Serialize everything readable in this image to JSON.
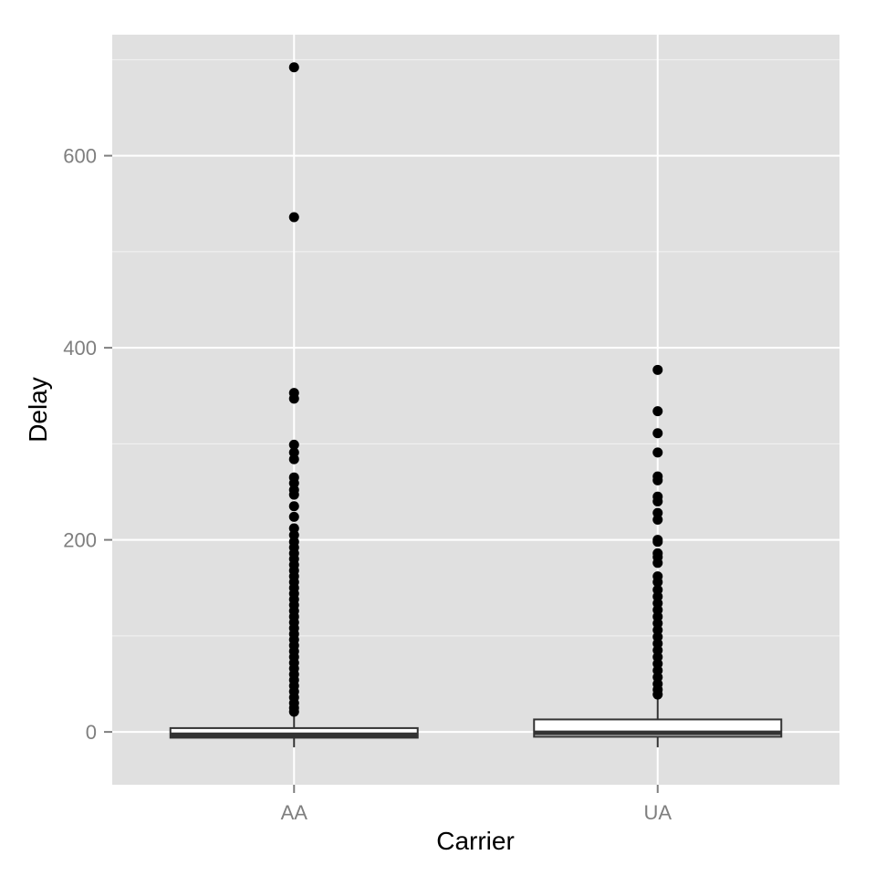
{
  "chart_data": {
    "type": "boxplot",
    "title": "",
    "xlabel": "Carrier",
    "ylabel": "Delay",
    "ylim": [
      -55,
      726
    ],
    "y_ticks": [
      0,
      200,
      400,
      600
    ],
    "y_tick_labels": [
      "0",
      "200",
      "400",
      "600"
    ],
    "grid": true,
    "legend": "none",
    "categories": [
      "AA",
      "UA"
    ],
    "boxes": [
      {
        "category": "AA",
        "whisker_low": -16,
        "q1": -6,
        "median": -3,
        "q3": 4,
        "whisker_high": 19,
        "outliers": [
          692,
          536,
          353,
          347,
          299,
          291,
          284,
          265,
          259,
          252,
          247,
          235,
          224,
          212,
          205,
          198,
          192,
          186,
          180,
          174,
          168,
          162,
          156,
          150,
          144,
          138,
          132,
          126,
          120,
          114,
          108,
          102,
          96,
          90,
          84,
          78,
          72,
          66,
          60,
          54,
          48,
          42,
          36,
          30,
          25,
          21
        ]
      },
      {
        "category": "UA",
        "whisker_low": -16,
        "q1": -5,
        "median": -1,
        "q3": 13,
        "whisker_high": 37,
        "outliers": [
          377,
          334,
          311,
          291,
          266,
          262,
          245,
          240,
          228,
          221,
          200,
          198,
          186,
          182,
          176,
          162,
          156,
          148,
          141,
          134,
          127,
          120,
          113,
          106,
          99,
          92,
          85,
          78,
          71,
          64,
          57,
          50,
          44,
          39
        ]
      }
    ]
  },
  "colors": {
    "panel_background": "#e0e0e0",
    "grid_line": "#ffffff",
    "box_fill": "#ffffff",
    "box_stroke": "#333333",
    "outlier_point": "#000000",
    "tick_label": "#7f7f7f",
    "axis_title": "#000000"
  }
}
